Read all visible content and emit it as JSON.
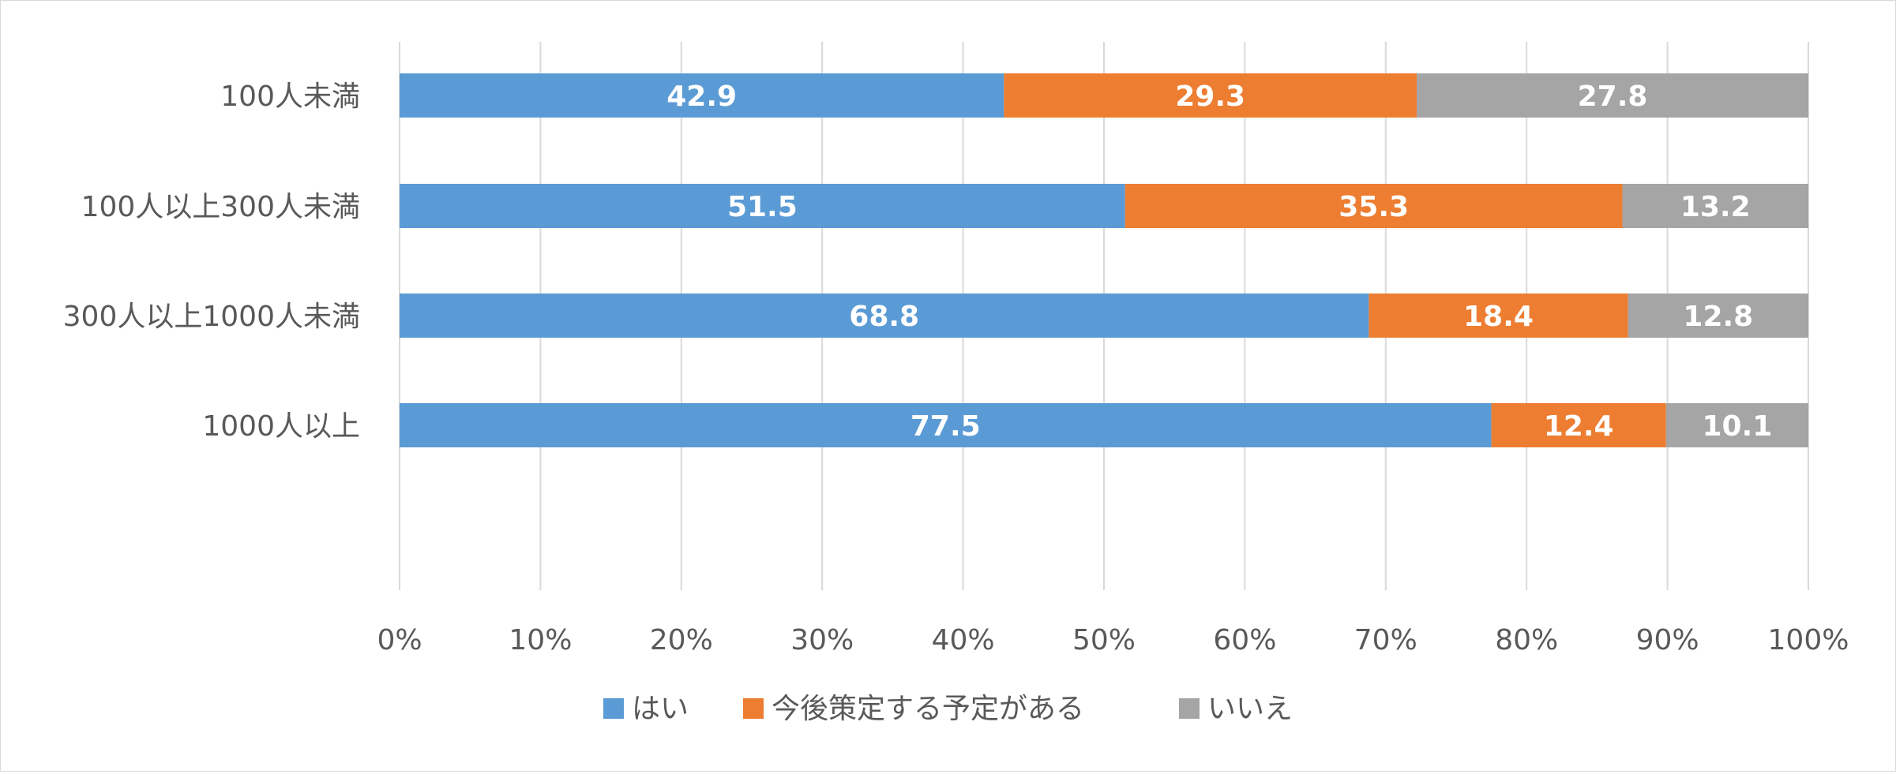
{
  "chart_data": {
    "type": "bar",
    "orientation": "horizontal",
    "stacked": true,
    "percent_stacked": true,
    "categories": [
      "100人未満",
      "100人以上300人未満",
      "300人以上1000人未満",
      "1000人以上"
    ],
    "series": [
      {
        "name": "はい",
        "color": "#5b9bd5",
        "values": [
          42.9,
          51.5,
          68.8,
          77.5
        ]
      },
      {
        "name": "今後策定する予定がある",
        "color": "#ed7d31",
        "values": [
          29.3,
          35.3,
          18.4,
          12.4
        ]
      },
      {
        "name": "いいえ",
        "color": "#a5a5a5",
        "values": [
          27.8,
          13.2,
          12.8,
          10.1
        ]
      }
    ],
    "xlim": [
      0,
      100
    ],
    "x_ticks": [
      "0%",
      "10%",
      "20%",
      "30%",
      "40%",
      "50%",
      "60%",
      "70%",
      "80%",
      "90%",
      "100%"
    ],
    "grid": "vertical",
    "legend_position": "bottom",
    "gridline_color": "#d9d9d9",
    "text_color": "#595959"
  }
}
